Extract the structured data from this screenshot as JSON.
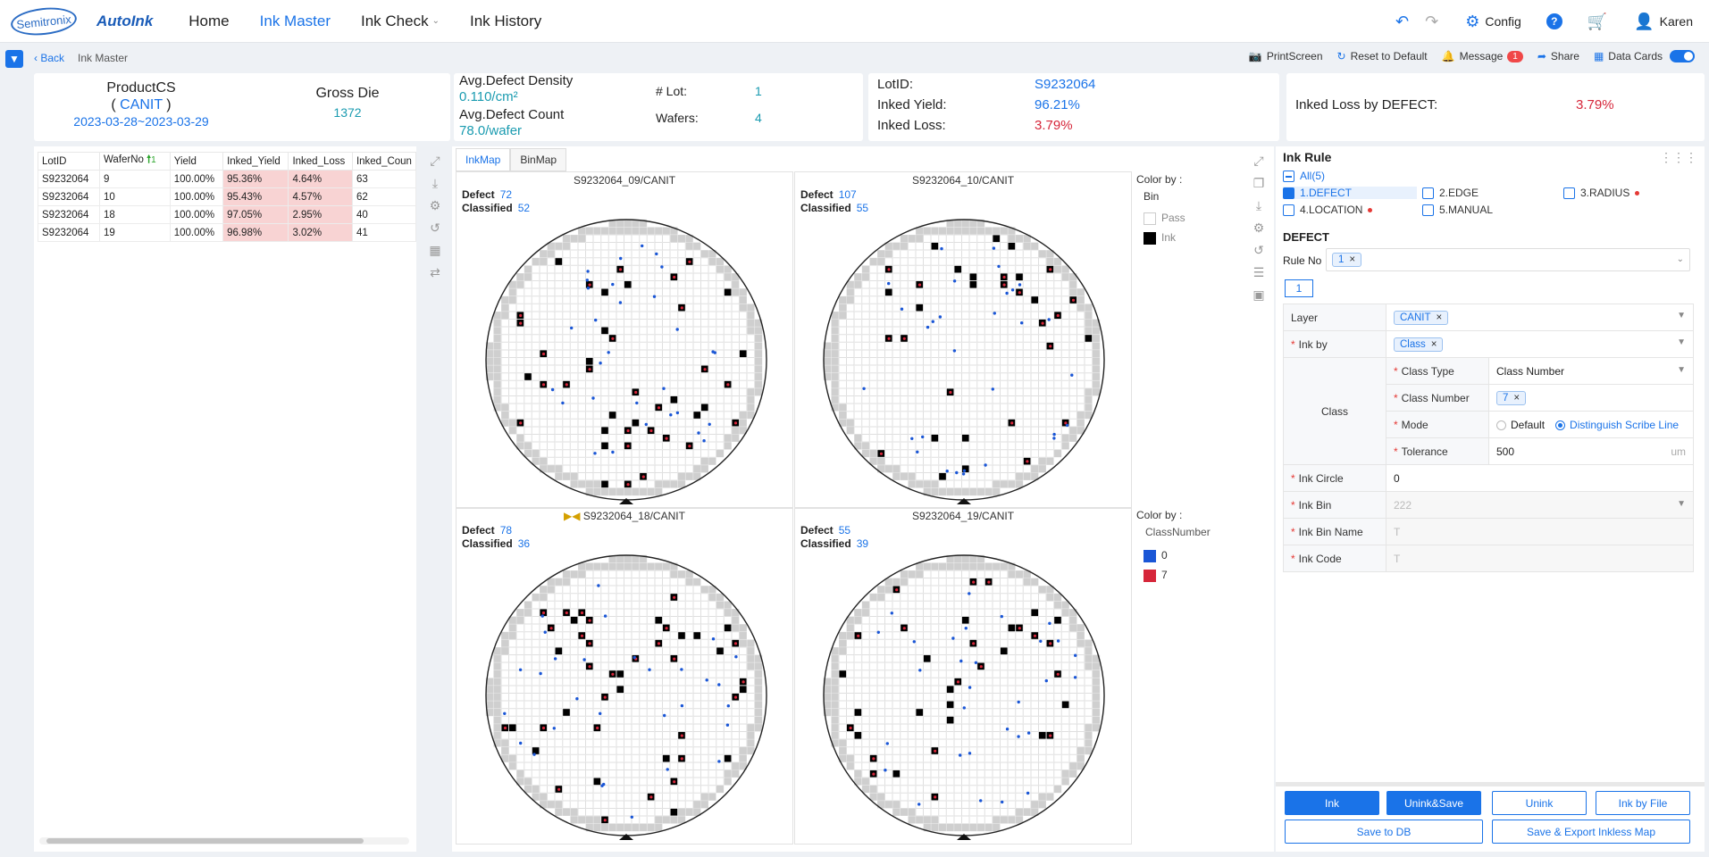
{
  "nav": {
    "logo_semitronix": "Semitronix",
    "logo_autoink": "AutoInk",
    "items": [
      {
        "label": "Home"
      },
      {
        "label": "Ink Master"
      },
      {
        "label": "Ink Check"
      },
      {
        "label": "Ink History"
      }
    ],
    "config_label": "Config",
    "help_label": "?",
    "user_name": "Karen"
  },
  "subbar": {
    "back_label": "Back",
    "crumb": "Ink Master",
    "printscreen": "PrintScreen",
    "reset": "Reset to Default",
    "message": "Message",
    "message_count": "1",
    "share": "Share",
    "datacards": "Data Cards"
  },
  "summary": {
    "product_label": "ProductCS",
    "product_layer": "CANIT",
    "date_range": "2023-03-28~2023-03-29",
    "gross_die_label": "Gross Die",
    "gross_die": "1372",
    "avg_density_label": "Avg.Defect Density",
    "avg_density": "0.110/cm²",
    "avg_count_label": "Avg.Defect Count",
    "avg_count": "78.0/wafer",
    "lot_label": "# Lot:",
    "lot_value": "1",
    "wafers_label": "Wafers:",
    "wafers_value": "4",
    "lotid_label": "LotID:",
    "lotid_value": "S9232064",
    "inked_yield_label": "Inked Yield:",
    "inked_yield_value": "96.21%",
    "inked_loss_label": "Inked Loss:",
    "inked_loss_value": "3.79%",
    "loss_by_defect_label": "Inked Loss by DEFECT:",
    "loss_by_defect_value": "3.79%"
  },
  "table": {
    "headers": [
      "LotID",
      "WaferNo",
      "Yield",
      "Inked_Yield",
      "Inked_Loss",
      "Inked_Coun"
    ],
    "sort_indicator": "1",
    "rows": [
      [
        "S9232064",
        "9",
        "100.00%",
        "95.36%",
        "4.64%",
        "63"
      ],
      [
        "S9232064",
        "10",
        "100.00%",
        "95.43%",
        "4.57%",
        "62"
      ],
      [
        "S9232064",
        "18",
        "100.00%",
        "97.05%",
        "2.95%",
        "40"
      ],
      [
        "S9232064",
        "19",
        "100.00%",
        "96.98%",
        "3.02%",
        "41"
      ]
    ]
  },
  "maps": {
    "tabs": [
      "InkMap",
      "BinMap"
    ],
    "defect_label": "Defect",
    "classified_label": "Classified",
    "wafers": [
      {
        "title": "S9232064_09/CANIT",
        "defect": "72",
        "classified": "52"
      },
      {
        "title": "S9232064_10/CANIT",
        "defect": "107",
        "classified": "55"
      },
      {
        "title": "S9232064_18/CANIT",
        "defect": "78",
        "classified": "36"
      },
      {
        "title": "S9232064_19/CANIT",
        "defect": "55",
        "classified": "39"
      }
    ],
    "legend_top": {
      "color_by": "Color by :",
      "field": "Bin",
      "items": [
        "Pass",
        "Ink"
      ]
    },
    "legend_bottom": {
      "color_by": "Color by :",
      "field": "ClassNumber",
      "items": [
        "0",
        "7"
      ]
    },
    "colors": {
      "ink": "#000000",
      "pass": "#ffffff",
      "class0": "#1a56d6",
      "class7": "#d6263a",
      "edge": "#cfcfcf"
    }
  },
  "ink_rule": {
    "title": "Ink Rule",
    "all_label": "All(5)",
    "rules": [
      "1.DEFECT",
      "2.EDGE",
      "3.RADIUS",
      "4.LOCATION",
      "5.MANUAL"
    ],
    "section": "DEFECT",
    "rule_no_label": "Rule No",
    "rule_no_value": "1",
    "rule_tab": "1",
    "form": {
      "layer_label": "Layer",
      "layer_value": "CANIT",
      "ink_by_label": "Ink by",
      "ink_by_value": "Class",
      "class_label": "Class",
      "class_type_label": "Class Type",
      "class_type_value": "Class Number",
      "class_number_label": "Class Number",
      "class_number_value": "7",
      "mode_label": "Mode",
      "mode_default": "Default",
      "mode_distinguish": "Distinguish Scribe Line",
      "tolerance_label": "Tolerance",
      "tolerance_value": "500",
      "tolerance_unit": "um",
      "ink_circle_label": "Ink Circle",
      "ink_circle_value": "0",
      "ink_bin_label": "Ink Bin",
      "ink_bin_value": "222",
      "ink_bin_name_label": "Ink Bin Name",
      "ink_bin_name_value": "T",
      "ink_code_label": "Ink Code",
      "ink_code_value": "T"
    },
    "buttons": {
      "ink": "Ink",
      "unink_save": "Unink&Save",
      "unink": "Unink",
      "ink_by_file": "Ink by File",
      "save_db": "Save to DB",
      "save_export": "Save & Export Inkless Map"
    }
  }
}
